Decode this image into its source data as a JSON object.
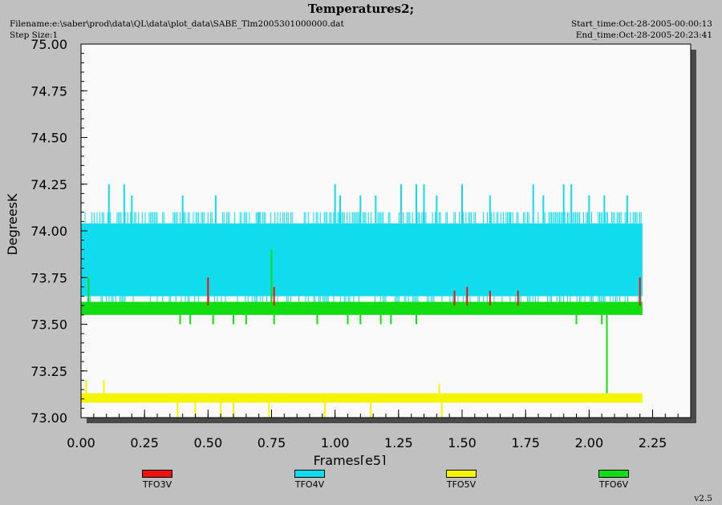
{
  "header": {
    "title": "Temperatures2;",
    "filename": "Filename:e:\\saber\\prod\\data\\QL\\data\\plot_data\\SABE_Tlm2005301000000.dat",
    "step_size": "Step Size:1",
    "start_time": "Start_time:Oct-28-2005-00:00:13",
    "end_time": "End_time:Oct-28-2005-20:23:41"
  },
  "version": "v2.5",
  "colors": {
    "background": "#c0c0c0",
    "plot_area": "#fafafa",
    "shadow": "#4a4a4a",
    "TFO3V": "#ee1111",
    "TFO4V": "#11dcee",
    "TFO5V": "#f5f500",
    "TFO6V": "#11dd11"
  },
  "chart_data": {
    "type": "line",
    "title": "Temperatures2;",
    "xlabel": "Frames[e5]",
    "ylabel": "DegreesK",
    "xlim": [
      0.0,
      2.4
    ],
    "ylim": [
      73.0,
      75.0
    ],
    "x_ticks": [
      0.0,
      0.25,
      0.5,
      0.75,
      1.0,
      1.25,
      1.5,
      1.75,
      2.0,
      2.25
    ],
    "x_tick_labels": [
      "0.00",
      "0.25",
      "0.50",
      "0.75",
      "1.00",
      "1.25",
      "1.50",
      "1.75",
      "2.00",
      "2.25"
    ],
    "y_ticks": [
      73.0,
      73.25,
      73.5,
      73.75,
      74.0,
      74.25,
      74.5,
      74.75,
      75.0
    ],
    "y_tick_labels": [
      "73.00",
      "73.25",
      "73.50",
      "73.75",
      "74.00",
      "74.25",
      "74.50",
      "74.75",
      "75.00"
    ],
    "x_range": [
      0.0,
      2.21
    ],
    "grid": false,
    "legend_position": "bottom",
    "series": [
      {
        "name": "TFO4V",
        "band": [
          73.65,
          74.04
        ],
        "upper_level": 74.1,
        "lower_level": 73.6,
        "spikes_up": [
          [
            0.11,
            74.25
          ],
          [
            0.17,
            74.25
          ],
          [
            0.2,
            74.19
          ],
          [
            0.4,
            74.19
          ],
          [
            0.53,
            74.19
          ],
          [
            0.7,
            74.1
          ],
          [
            1.0,
            74.25
          ],
          [
            1.02,
            74.19
          ],
          [
            1.1,
            74.19
          ],
          [
            1.16,
            74.19
          ],
          [
            1.26,
            74.25
          ],
          [
            1.32,
            74.25
          ],
          [
            1.35,
            74.25
          ],
          [
            1.4,
            74.19
          ],
          [
            1.5,
            74.25
          ],
          [
            1.61,
            74.19
          ],
          [
            1.69,
            74.1
          ],
          [
            1.78,
            74.25
          ],
          [
            1.82,
            74.19
          ],
          [
            1.9,
            74.25
          ],
          [
            1.93,
            74.25
          ],
          [
            2.0,
            74.19
          ],
          [
            2.06,
            74.19
          ],
          [
            2.15,
            74.19
          ]
        ]
      },
      {
        "name": "TFO6V",
        "band": [
          73.55,
          73.62
        ],
        "spikes_up": [
          [
            0.03,
            73.75
          ],
          [
            0.75,
            73.9
          ]
        ],
        "spikes_down": [
          [
            0.39,
            73.5
          ],
          [
            0.43,
            73.5
          ],
          [
            0.52,
            73.5
          ],
          [
            0.6,
            73.5
          ],
          [
            0.65,
            73.5
          ],
          [
            0.76,
            73.5
          ],
          [
            0.93,
            73.5
          ],
          [
            1.05,
            73.5
          ],
          [
            1.1,
            73.5
          ],
          [
            1.18,
            73.5
          ],
          [
            1.22,
            73.5
          ],
          [
            1.32,
            73.5
          ],
          [
            1.95,
            73.5
          ],
          [
            2.05,
            73.5
          ],
          [
            2.07,
            73.13
          ]
        ]
      },
      {
        "name": "TFO5V",
        "band": [
          73.08,
          73.13
        ],
        "spikes_up": [
          [
            0.02,
            73.2
          ],
          [
            0.09,
            73.2
          ],
          [
            1.41,
            73.18
          ]
        ],
        "spikes_down": [
          [
            0.38,
            73.0
          ],
          [
            0.45,
            73.0
          ],
          [
            0.55,
            73.0
          ],
          [
            0.6,
            73.0
          ],
          [
            0.74,
            73.0
          ],
          [
            0.96,
            73.0
          ],
          [
            1.14,
            73.0
          ],
          [
            1.42,
            73.0
          ]
        ]
      },
      {
        "name": "TFO3V",
        "spikes_up": [
          [
            0.5,
            73.75
          ],
          [
            0.76,
            73.7
          ],
          [
            1.47,
            73.68
          ],
          [
            1.52,
            73.7
          ],
          [
            1.61,
            73.68
          ],
          [
            1.72,
            73.68
          ],
          [
            2.2,
            73.75
          ]
        ]
      }
    ]
  }
}
